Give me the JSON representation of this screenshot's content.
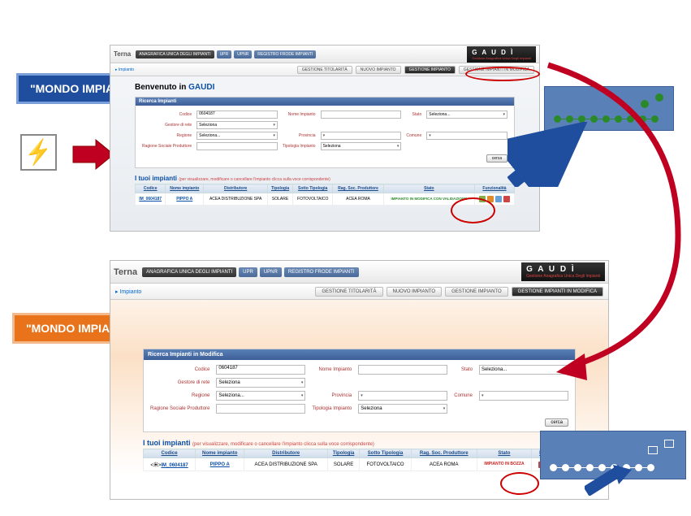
{
  "badges": {
    "mondo_impianto": "\"MONDO  IMPIANTO\"",
    "mondo_modifica": "\"MONDO  IMPIANTI IN MODIFICA\""
  },
  "top_panel": {
    "logo": "Terna",
    "tabs": [
      "ANAGRAFICA UNICA DEGLI IMPIANTI",
      "UPR",
      "UPNR",
      "REGISTRO FRODE IMPIANTI"
    ],
    "gaudi": "G A U D Ì",
    "gaudi_sub": "Gestione Anagrafica Unica Degli Impianti",
    "crumb": "Impianto",
    "nav": [
      "GESTIONE TITOLARITÀ",
      "NUOVO IMPIANTO",
      "GESTIONE IMPIANTO",
      "GESTIONE IMPIANTI IN MODIFICA"
    ],
    "welcome_pre": "Benvenuto in ",
    "welcome_app": "GAUDI",
    "search_hdr": "Ricerca Impianti",
    "labels": {
      "codice": "Codice",
      "nome": "Nome Impianto",
      "stato": "Stato",
      "gestore": "Gestore di rete",
      "regione": "Regione",
      "provincia": "Provincia",
      "comune": "Comune",
      "ragsoc": "Ragione Sociale Produttore",
      "tipologia": "Tipologia Impianto"
    },
    "values": {
      "codice": "0604187",
      "seleziona": "Seleziona",
      "selezionadots": "Seleziona..."
    },
    "cerca": "cerca",
    "tuoi": "I tuoi impianti",
    "tuoi_sub": "(per visualizzare, modificare o cancellare l'impianto clicca sulla voce corrispondente)",
    "cols": [
      "Codice",
      "Nome impianto",
      "Distributore",
      "Tipologia",
      "Sotto Tipologia",
      "Rag. Soc. Produttore",
      "Stato",
      "Funzionalità"
    ],
    "row": {
      "codice": "IM_0604187",
      "nome": "PIPPO A",
      "distr": "ACEA DISTRIBUZIONE SPA",
      "tip": "SOLARE",
      "sottotip": "FOTOVOLTAICO",
      "ragsoc": "ACEA ROMA",
      "stato": "IMPIANTO IN MODIFICA CON VALIDAZIONE"
    },
    "icon_colors": [
      "#7fb04a",
      "#e08a2e",
      "#6aa0d8",
      "#c44"
    ]
  },
  "bottom_panel": {
    "logo": "Terna",
    "tabs": [
      "ANAGRAFICA UNICA DEGLI IMPIANTI",
      "UPR",
      "UPNR",
      "REGISTRO FRODE IMPIANTI"
    ],
    "gaudi": "G A U D Ì",
    "gaudi_sub": "Gestione Anagrafica Unica Degli Impianti",
    "crumb": "Impianto",
    "nav": [
      "GESTIONE TITOLARITÀ",
      "NUOVO IMPIANTO",
      "GESTIONE IMPIANTO",
      "GESTIONE IMPIANTI IN MODIFICA"
    ],
    "search_hdr": "Ricerca Impianti in Modifica",
    "tuoi": "I tuoi impianti",
    "tuoi_sub": "(per visualizzare, modificare o cancellare l'impianto clicca sulla voce corrispondente)",
    "cols": [
      "Codice",
      "Nome impianto",
      "Distributore",
      "Tipologia",
      "Sotto Tipologia",
      "Rag. Soc. Produttore",
      "Stato",
      "Funzionalità"
    ],
    "row": {
      "codice": "IM_0604187",
      "nome": "PIPPO A",
      "distr": "ACEA DISTRIBUZIONE SPA",
      "tip": "SOLARE",
      "sottotip": "FOTOVOLTAICO",
      "ragsoc": "ACEA ROMA",
      "stato": "IMPIANTO IN BOZZA"
    },
    "icon_colors": [
      "#c44",
      "#7fb04a",
      "#e08a2e",
      "#6aa0d8"
    ]
  },
  "workflows": {
    "top": {
      "bg": "#5a80b8",
      "dot_colors": [
        "#2a8a2a",
        "#2a8a2a",
        "#2a8a2a",
        "#2a8a2a",
        "#2a8a2a",
        "#2a8a2a",
        "#2a8a2a",
        "#2a8a2a",
        "#2a8a2a"
      ]
    },
    "bottom": {
      "bg": "#5a80b8",
      "dot_colors": [
        "#fff",
        "#fff",
        "#fff",
        "#fff",
        "#fff",
        "#fff",
        "#fff",
        "#fff",
        "#fff"
      ]
    }
  }
}
